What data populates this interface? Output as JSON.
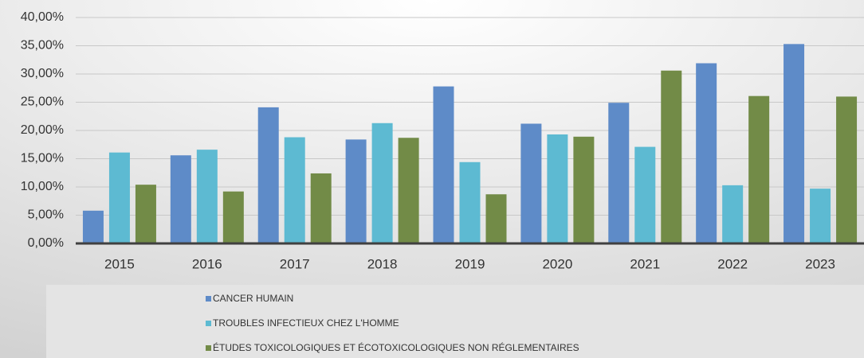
{
  "chart_data": {
    "type": "bar",
    "categories": [
      "2015",
      "2016",
      "2017",
      "2018",
      "2019",
      "2020",
      "2021",
      "2022",
      "2023"
    ],
    "series": [
      {
        "name": "CANCER HUMAIN",
        "color": "#5e8bc8",
        "values": [
          5.8,
          15.6,
          24.1,
          18.4,
          27.8,
          21.2,
          24.9,
          31.9,
          35.3
        ]
      },
      {
        "name": "TROUBLES INFECTIEUX CHEZ L'HOMME",
        "color": "#5dbad2",
        "values": [
          16.1,
          16.6,
          18.8,
          21.3,
          14.4,
          19.3,
          17.1,
          10.3,
          9.7
        ]
      },
      {
        "name": "ÉTUDES TOXICOLOGIQUES ET ÉCOTOXICOLOGIQUES NON RÉGLEMENTAIRES",
        "color": "#728b47",
        "values": [
          10.4,
          9.2,
          12.4,
          18.7,
          8.7,
          18.9,
          30.6,
          26.1,
          26.0
        ]
      }
    ],
    "ylim": [
      0,
      40
    ],
    "yticks": [
      {
        "value": 0,
        "label": "0,00%"
      },
      {
        "value": 5,
        "label": "5,00%"
      },
      {
        "value": 10,
        "label": "10,00%"
      },
      {
        "value": 15,
        "label": "15,00%"
      },
      {
        "value": 20,
        "label": "20,00%"
      },
      {
        "value": 25,
        "label": "25,00%"
      },
      {
        "value": 30,
        "label": "30,00%"
      },
      {
        "value": 35,
        "label": "35,00%"
      },
      {
        "value": 40,
        "label": "40,00%"
      }
    ],
    "grid": true
  }
}
